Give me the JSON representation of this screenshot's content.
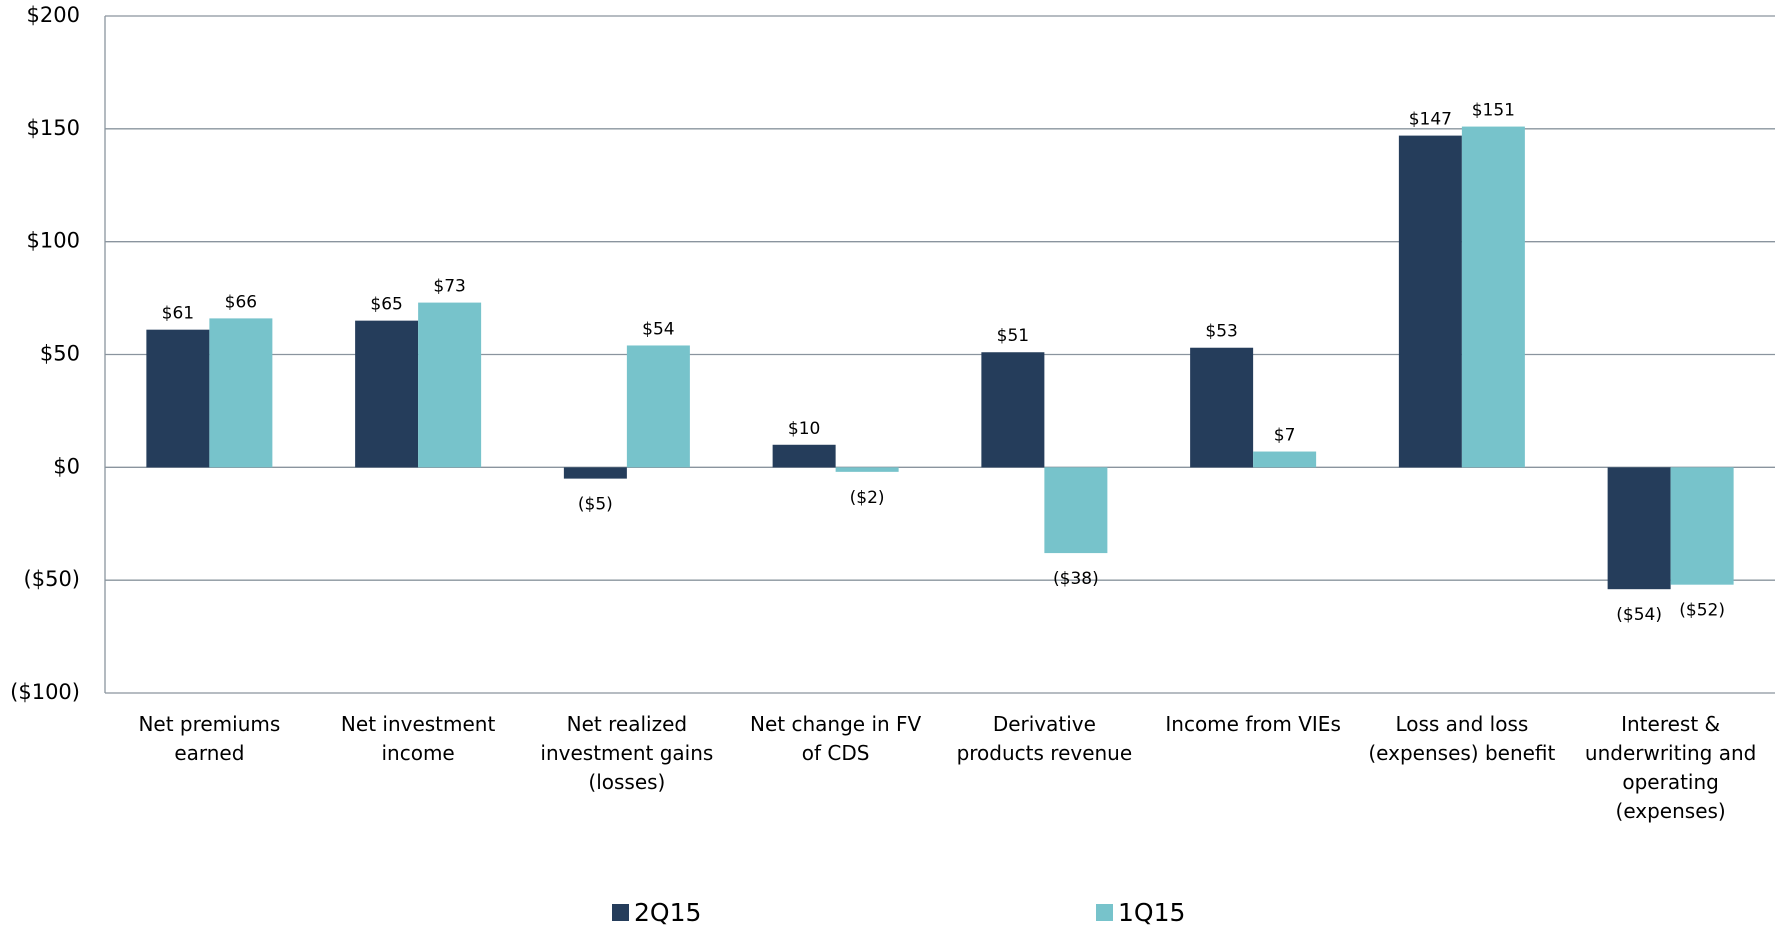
{
  "chart_data": {
    "type": "bar",
    "categories": [
      "Net premiums earned",
      "Net investment income",
      "Net realized investment gains (losses)",
      "Net change in FV of CDS",
      "Derivative products revenue",
      "Income from VIEs",
      "Loss and loss (expenses) benefit",
      "Interest & underwriting and operating (expenses)"
    ],
    "series": [
      {
        "name": "2Q15",
        "color": "#253d5b",
        "values": [
          61,
          65,
          -5,
          10,
          51,
          53,
          147,
          -54
        ],
        "value_labels": [
          "$61",
          "$65",
          "($5)",
          "$10",
          "$51",
          "$53",
          "$147",
          "($54)"
        ]
      },
      {
        "name": "1Q15",
        "color": "#77c3cb",
        "values": [
          66,
          73,
          54,
          -2,
          -38,
          7,
          151,
          -52
        ],
        "value_labels": [
          "$66",
          "$73",
          "$54",
          "($2)",
          "($38)",
          "$7",
          "$151",
          "($52)"
        ]
      }
    ],
    "ylim": [
      -100,
      200
    ],
    "yticks": [
      {
        "value": -100,
        "label": "($100)"
      },
      {
        "value": -50,
        "label": "($50)"
      },
      {
        "value": 0,
        "label": "$0"
      },
      {
        "value": 50,
        "label": "$50"
      },
      {
        "value": 100,
        "label": "$100"
      },
      {
        "value": 150,
        "label": "$150"
      },
      {
        "value": 200,
        "label": "$200"
      }
    ],
    "grid": true,
    "legend": "bottom"
  }
}
